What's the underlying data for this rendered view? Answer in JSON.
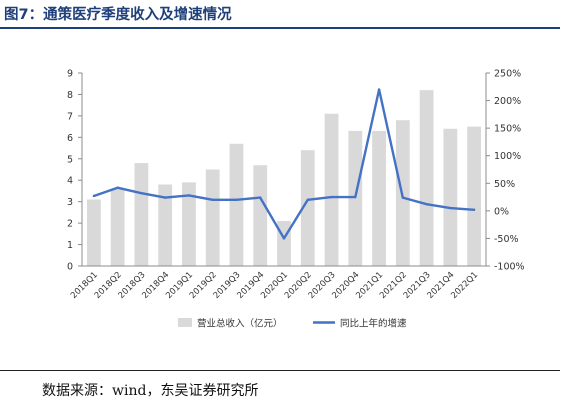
{
  "figure": {
    "title": "图7：通策医疗季度收入及增速情况",
    "source": "数据来源：wind，东吴证券研究所"
  },
  "chart_data": {
    "type": "bar",
    "categories": [
      "2018Q1",
      "2018Q2",
      "2018Q3",
      "2018Q4",
      "2019Q1",
      "2019Q2",
      "2019Q3",
      "2019Q4",
      "2020Q1",
      "2020Q2",
      "2020Q3",
      "2020Q4",
      "2021Q1",
      "2021Q2",
      "2021Q3",
      "2021Q4",
      "2022Q1"
    ],
    "series": [
      {
        "name": "营业总收入（亿元）",
        "type": "bar",
        "axis": "left",
        "color": "#d9d9d9",
        "values": [
          3.1,
          3.6,
          4.8,
          3.8,
          3.9,
          4.5,
          5.7,
          4.7,
          2.1,
          5.4,
          7.1,
          6.3,
          6.3,
          6.8,
          8.2,
          6.4,
          6.5
        ]
      },
      {
        "name": "同比上年的增速",
        "type": "line",
        "axis": "right",
        "color": "#4472c4",
        "values": [
          27,
          42,
          32,
          24,
          28,
          20,
          20,
          24,
          -50,
          20,
          25,
          25,
          220,
          24,
          12,
          5,
          2
        ]
      }
    ],
    "y_left": {
      "min": 0,
      "max": 9,
      "ticks": [
        "0",
        "1",
        "2",
        "3",
        "4",
        "5",
        "6",
        "7",
        "8",
        "9"
      ]
    },
    "y_right": {
      "min": -100,
      "max": 250,
      "ticks": [
        "-100%",
        "-50%",
        "0%",
        "50%",
        "100%",
        "150%",
        "200%",
        "250%"
      ]
    },
    "legend_position": "bottom",
    "grid": false
  }
}
